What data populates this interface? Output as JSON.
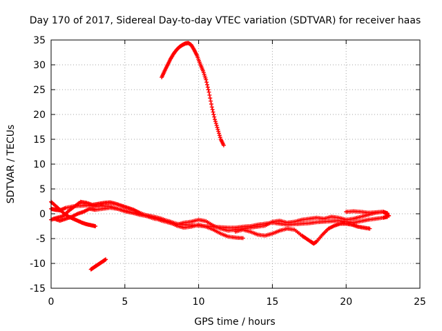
{
  "chart_data": {
    "type": "scatter",
    "title": "Day 170 of 2017, Sidereal Day-to-day VTEC variation (SDTVAR) for receiver haas",
    "xlabel": "GPS time / hours",
    "ylabel": "SDTVAR / TECUs",
    "xlim": [
      0,
      25
    ],
    "ylim": [
      -15,
      35
    ],
    "grid": true,
    "xticks": [
      0,
      5,
      10,
      15,
      20,
      25
    ],
    "yticks": [
      -15,
      -10,
      -5,
      0,
      5,
      10,
      15,
      20,
      25,
      30,
      35
    ],
    "series": [
      {
        "name": "SDTVAR",
        "color": "#ff0000",
        "marker": "+",
        "tracks": [
          {
            "x": [
              0.0,
              0.3,
              0.6,
              1.0,
              1.5,
              2.0,
              2.5,
              3.0,
              3.5,
              4.0,
              4.5,
              5.0,
              5.5,
              6.0,
              6.5,
              7.0,
              7.5,
              8.0,
              8.5,
              9.0,
              9.5,
              10.0,
              10.5,
              11.0,
              11.5,
              12.0,
              12.5,
              13.0,
              13.5,
              14.0,
              14.5,
              15.0,
              15.5,
              16.0,
              16.5,
              17.0,
              17.5,
              18.0,
              18.5,
              19.0,
              19.5,
              20.0,
              20.5,
              21.0,
              21.5,
              22.0,
              22.5,
              22.8
            ],
            "y": [
              1.0,
              0.8,
              0.7,
              1.2,
              1.5,
              1.6,
              1.7,
              1.5,
              1.6,
              1.5,
              1.0,
              0.5,
              0.2,
              -0.2,
              -0.5,
              -1.0,
              -1.2,
              -1.5,
              -2.0,
              -2.2,
              -2.3,
              -2.4,
              -2.5,
              -2.6,
              -2.7,
              -2.8,
              -2.8,
              -2.6,
              -2.5,
              -2.2,
              -2.0,
              -1.8,
              -2.0,
              -2.2,
              -2.1,
              -2.0,
              -1.9,
              -1.7,
              -1.6,
              -1.5,
              -1.4,
              -1.6,
              -1.8,
              -1.5,
              -1.2,
              -1.0,
              -0.8,
              -0.6
            ]
          },
          {
            "x": [
              0.0,
              0.4,
              0.8,
              1.2,
              1.6,
              2.0,
              2.4,
              2.8,
              3.2,
              3.6,
              4.0,
              4.4,
              4.8,
              5.2,
              5.6,
              6.0,
              6.5,
              7.0,
              7.5,
              8.0,
              8.5,
              9.0,
              9.5,
              10.0,
              10.5,
              11.0,
              11.5,
              12.0,
              12.5,
              13.0,
              13.5,
              14.0,
              14.5,
              15.0,
              15.5,
              16.0,
              16.5,
              17.0,
              17.5,
              18.0,
              18.5,
              19.0,
              19.5,
              20.0,
              20.5,
              21.0,
              21.5,
              22.0,
              22.5,
              22.9
            ],
            "y": [
              -1.2,
              -0.8,
              -0.5,
              0.6,
              1.5,
              2.4,
              2.2,
              1.8,
              2.0,
              2.2,
              2.3,
              2.0,
              1.6,
              1.2,
              0.8,
              0.2,
              -0.4,
              -0.8,
              -1.4,
              -1.8,
              -2.2,
              -1.8,
              -1.6,
              -1.2,
              -1.5,
              -2.4,
              -3.0,
              -3.4,
              -3.2,
              -3.0,
              -2.8,
              -2.6,
              -2.4,
              -1.6,
              -1.4,
              -1.8,
              -1.6,
              -1.2,
              -1.0,
              -0.8,
              -1.0,
              -0.6,
              -0.8,
              -1.2,
              -1.0,
              -0.6,
              -0.2,
              0.2,
              0.4,
              -0.4
            ]
          },
          {
            "x": [
              0.2,
              0.6,
              1.0,
              1.4,
              1.8,
              2.2,
              2.6,
              3.0,
              3.5,
              4.0,
              4.5,
              5.0,
              5.5,
              6.0,
              6.5,
              7.0,
              7.5,
              8.0,
              8.5,
              9.0,
              9.5,
              10.0,
              10.5,
              11.0,
              11.5,
              12.0,
              12.5,
              13.0
            ],
            "y": [
              -1.0,
              -1.4,
              -1.0,
              -0.6,
              0.0,
              0.4,
              1.0,
              0.8,
              1.0,
              1.2,
              1.0,
              0.6,
              0.2,
              0.0,
              -0.3,
              -0.6,
              -1.0,
              -1.6,
              -2.4,
              -2.8,
              -2.6,
              -2.2,
              -2.6,
              -3.2,
              -4.0,
              -4.6,
              -4.8,
              -4.9
            ]
          },
          {
            "x": [
              12.5,
              13.0,
              13.5,
              14.0,
              14.5,
              15.0,
              15.5,
              16.0,
              16.5,
              17.0,
              17.3,
              17.6,
              17.8,
              18.0,
              18.4,
              18.8,
              19.2,
              19.6,
              20.0,
              20.4,
              20.8,
              21.2,
              21.6
            ],
            "y": [
              -3.6,
              -3.2,
              -3.6,
              -4.2,
              -4.4,
              -4.0,
              -3.4,
              -3.0,
              -3.2,
              -4.4,
              -5.0,
              -5.6,
              -6.0,
              -5.6,
              -4.2,
              -3.0,
              -2.4,
              -2.0,
              -2.0,
              -2.2,
              -2.6,
              -2.8,
              -3.0
            ]
          },
          {
            "x": [
              0.0,
              0.3,
              0.6,
              0.9,
              1.2,
              1.5,
              1.8,
              2.1,
              2.4,
              2.7,
              3.0
            ],
            "y": [
              2.4,
              1.6,
              0.8,
              0.0,
              -0.6,
              -1.0,
              -1.4,
              -1.8,
              -2.1,
              -2.3,
              -2.5
            ]
          },
          {
            "x": [
              20.0,
              20.5,
              21.0,
              21.5,
              22.0,
              22.5,
              22.8
            ],
            "y": [
              0.4,
              0.5,
              0.4,
              0.2,
              0.3,
              0.4,
              0.1
            ]
          },
          {
            "x": [
              2.7,
              2.9,
              3.1,
              3.3,
              3.5,
              3.7
            ],
            "y": [
              -11.2,
              -10.8,
              -10.4,
              -10.0,
              -9.6,
              -9.2
            ]
          },
          {
            "x": [
              7.5,
              7.7,
              7.9,
              8.1,
              8.3,
              8.5,
              8.7,
              8.9,
              9.1,
              9.3,
              9.5,
              9.7,
              9.9,
              10.1,
              10.3,
              10.5,
              10.7,
              10.9,
              11.1,
              11.3,
              11.5,
              11.7
            ],
            "y": [
              27.5,
              28.8,
              30.0,
              31.2,
              32.2,
              33.0,
              33.6,
              34.0,
              34.3,
              34.4,
              34.0,
              33.0,
              31.8,
              30.2,
              28.8,
              27.0,
              24.5,
              21.5,
              19.0,
              17.0,
              15.0,
              13.8
            ]
          }
        ]
      }
    ]
  }
}
